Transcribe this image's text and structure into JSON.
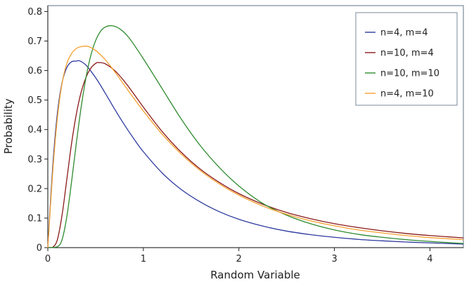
{
  "chart_data": {
    "type": "line",
    "title": "",
    "xlabel": "Random Variable",
    "ylabel": "Probability",
    "xlim": [
      0,
      4.35
    ],
    "ylim": [
      0,
      0.82
    ],
    "xticks": [
      0,
      1,
      2,
      3,
      4
    ],
    "yticks": [
      0,
      0.1,
      0.2,
      0.3,
      0.4,
      0.5,
      0.6,
      0.7,
      0.8
    ],
    "grid": false,
    "legend_position": "top-right",
    "series": [
      {
        "name": "n=4, m=4",
        "color": "#2e3a9e",
        "x": [
          0,
          0.05,
          0.1,
          0.15,
          0.2,
          0.25,
          0.3,
          0.333,
          0.4,
          0.5,
          0.6,
          0.7,
          0.8,
          0.9,
          1.0,
          1.2,
          1.4,
          1.6,
          1.8,
          2.0,
          2.25,
          2.5,
          2.75,
          3.0,
          3.25,
          3.5,
          3.75,
          4.0,
          4.35
        ],
        "y": [
          0,
          0.268,
          0.455,
          0.56,
          0.611,
          0.63,
          0.632,
          0.633,
          0.618,
          0.576,
          0.524,
          0.469,
          0.417,
          0.369,
          0.325,
          0.252,
          0.196,
          0.154,
          0.121,
          0.096,
          0.073,
          0.056,
          0.044,
          0.035,
          0.028,
          0.023,
          0.019,
          0.016,
          0.012
        ]
      },
      {
        "name": "n=10, m=4",
        "color": "#8b1a1a",
        "x": [
          0,
          0.05,
          0.1,
          0.15,
          0.2,
          0.25,
          0.3,
          0.35,
          0.4,
          0.45,
          0.5,
          0.533,
          0.6,
          0.7,
          0.8,
          0.9,
          1.0,
          1.2,
          1.4,
          1.6,
          1.8,
          2.0,
          2.25,
          2.5,
          2.75,
          3.0,
          3.25,
          3.5,
          3.75,
          4.0,
          4.35
        ],
        "y": [
          0,
          0.001,
          0.027,
          0.112,
          0.234,
          0.356,
          0.455,
          0.528,
          0.577,
          0.608,
          0.624,
          0.627,
          0.623,
          0.6,
          0.564,
          0.521,
          0.476,
          0.392,
          0.322,
          0.265,
          0.22,
          0.183,
          0.147,
          0.119,
          0.098,
          0.081,
          0.068,
          0.057,
          0.048,
          0.041,
          0.033
        ]
      },
      {
        "name": "n=10, m=10",
        "color": "#2e8b2e",
        "x": [
          0,
          0.1,
          0.15,
          0.2,
          0.25,
          0.3,
          0.35,
          0.4,
          0.45,
          0.5,
          0.55,
          0.6,
          0.667,
          0.75,
          0.85,
          1.0,
          1.2,
          1.4,
          1.6,
          1.8,
          2.0,
          2.25,
          2.5,
          2.75,
          3.0,
          3.25,
          3.5,
          3.75,
          4.0,
          4.35
        ],
        "y": [
          0,
          0.003,
          0.028,
          0.107,
          0.227,
          0.358,
          0.478,
          0.577,
          0.651,
          0.701,
          0.732,
          0.747,
          0.752,
          0.742,
          0.711,
          0.64,
          0.537,
          0.434,
          0.344,
          0.27,
          0.209,
          0.15,
          0.11,
          0.081,
          0.06,
          0.045,
          0.035,
          0.027,
          0.021,
          0.014
        ]
      },
      {
        "name": "n=4, m=10",
        "color": "#f5a030",
        "x": [
          0,
          0.05,
          0.1,
          0.15,
          0.2,
          0.25,
          0.3,
          0.35,
          0.417,
          0.5,
          0.6,
          0.7,
          0.8,
          0.9,
          1.0,
          1.2,
          1.4,
          1.6,
          1.8,
          2.0,
          2.25,
          2.5,
          2.75,
          3.0,
          3.25,
          3.5,
          3.75,
          4.0,
          4.35
        ],
        "y": [
          0,
          0.25,
          0.439,
          0.558,
          0.625,
          0.658,
          0.675,
          0.681,
          0.682,
          0.668,
          0.637,
          0.596,
          0.551,
          0.506,
          0.463,
          0.383,
          0.316,
          0.26,
          0.215,
          0.178,
          0.141,
          0.113,
          0.091,
          0.074,
          0.06,
          0.05,
          0.041,
          0.034,
          0.027
        ]
      }
    ]
  }
}
